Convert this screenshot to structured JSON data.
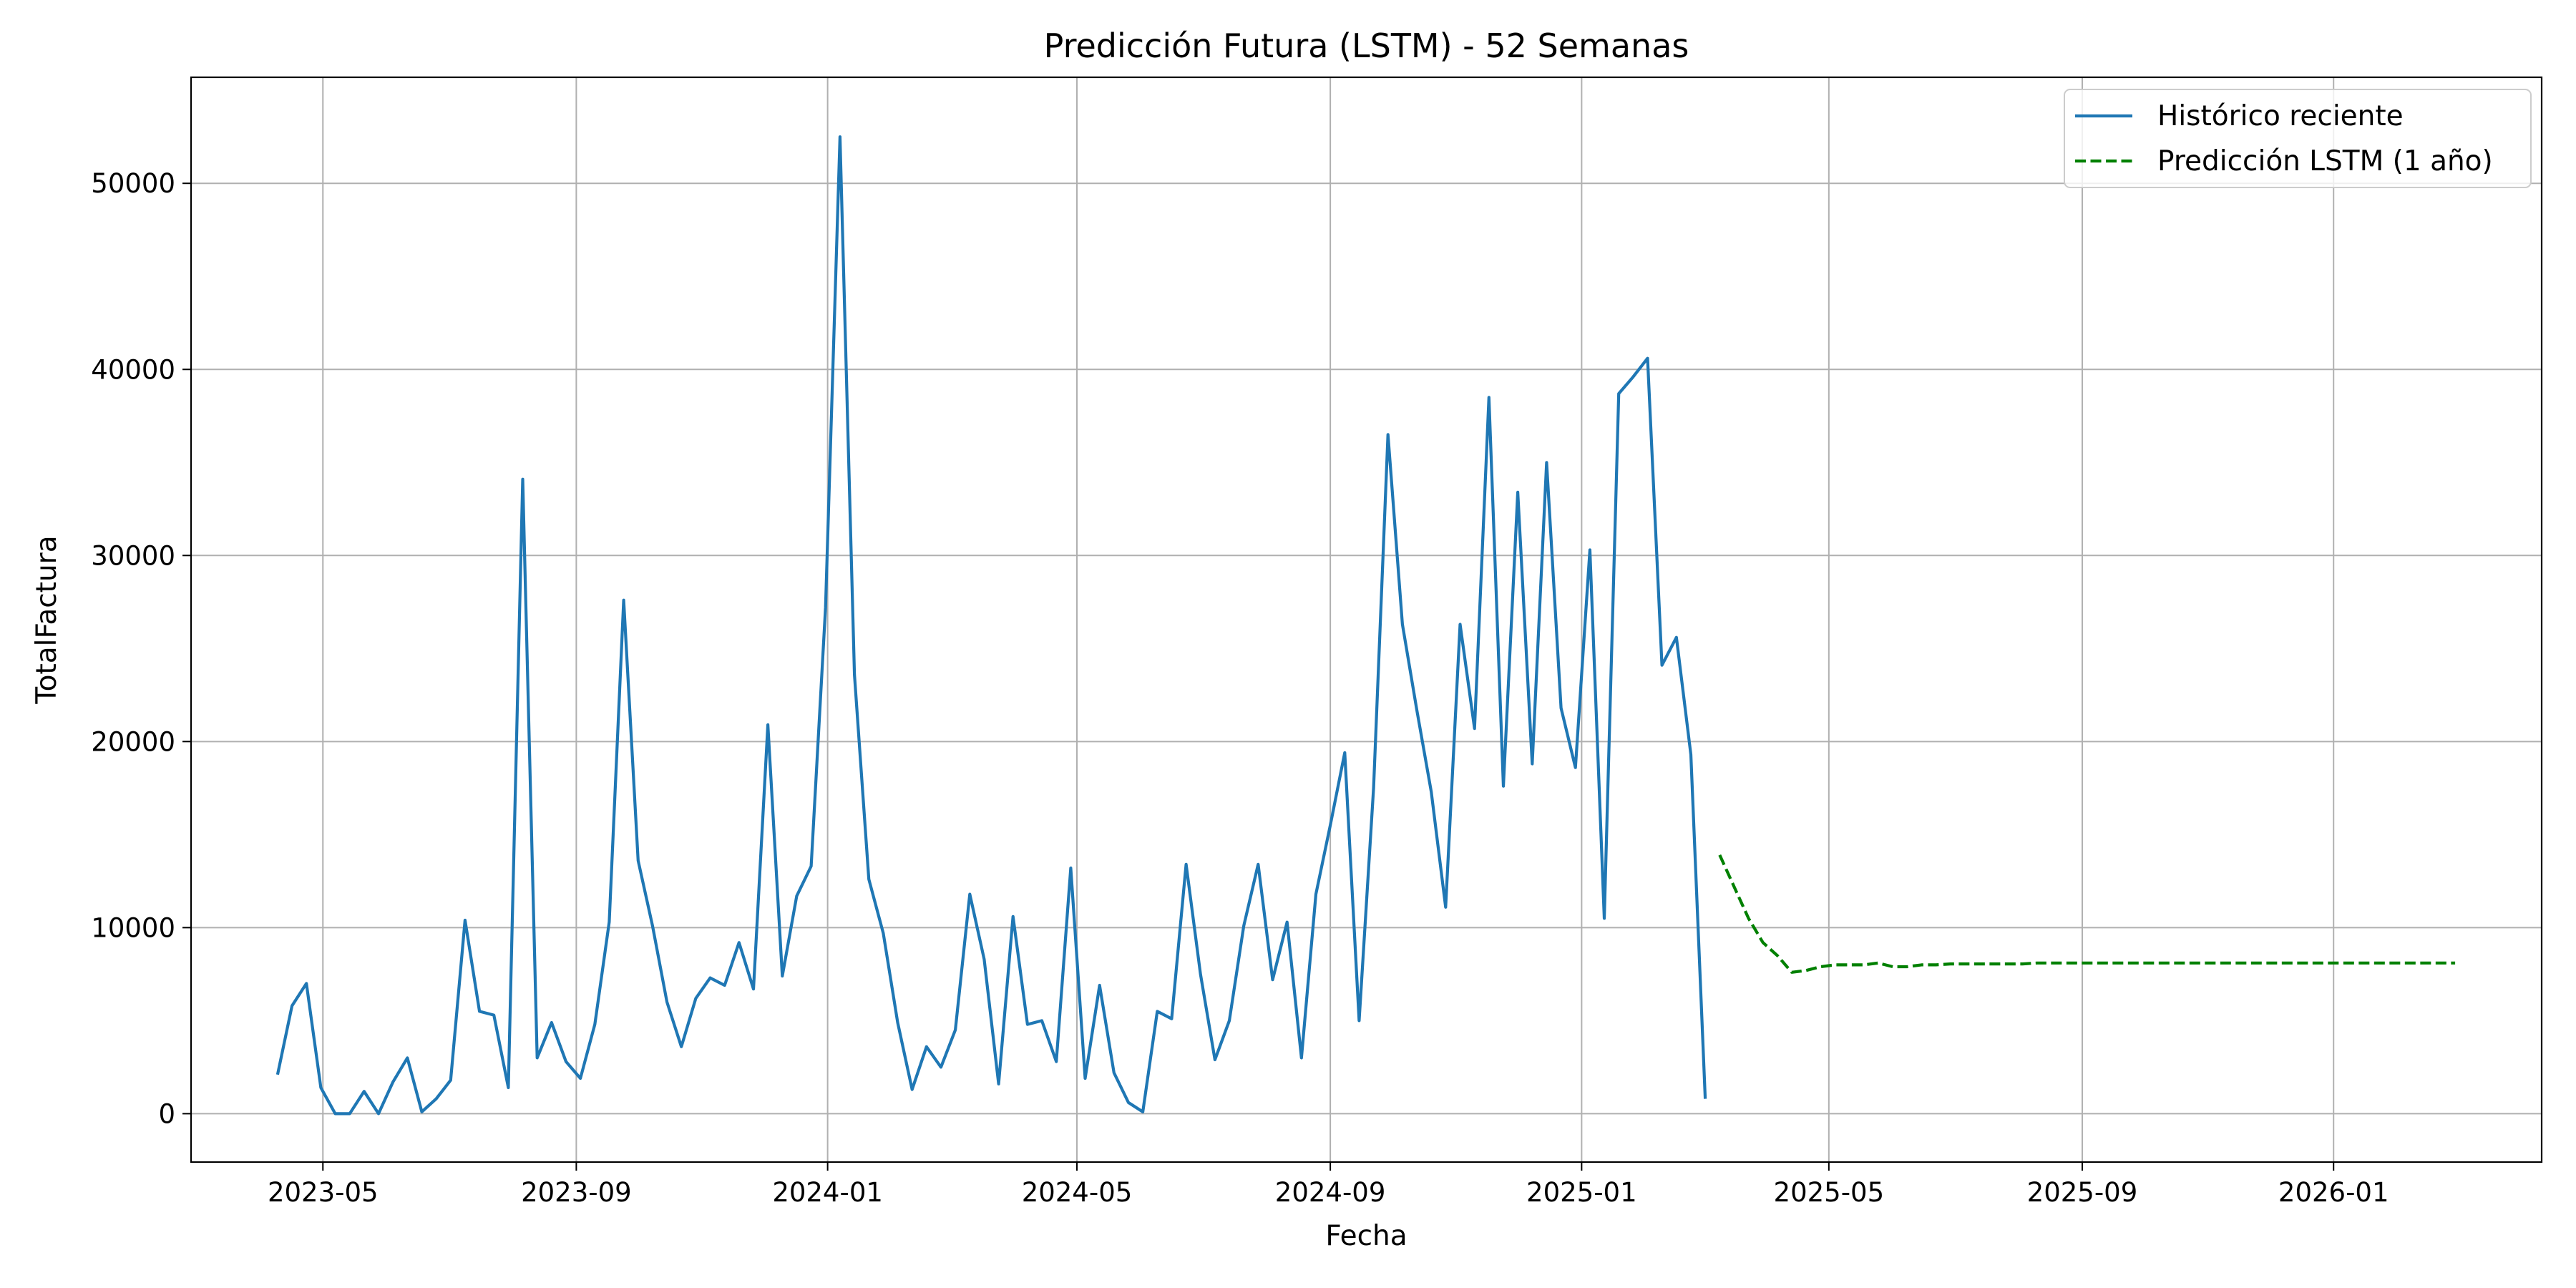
{
  "chart_data": {
    "type": "line",
    "title": "Predicción Futura (LSTM) - 52 Semanas",
    "xlabel": "Fecha",
    "ylabel": "TotalFactura",
    "x_range": [
      "2023-02-26",
      "2026-04-12"
    ],
    "ylim": [
      -2600,
      55700
    ],
    "grid": true,
    "legend_position": "top-right",
    "x_ticks": [
      "2023-05",
      "2023-09",
      "2024-01",
      "2024-05",
      "2024-09",
      "2025-01",
      "2025-05",
      "2025-09",
      "2026-01"
    ],
    "y_ticks": [
      0,
      10000,
      20000,
      30000,
      40000,
      50000
    ],
    "series": [
      {
        "name": "Histórico reciente",
        "color": "#1f77b4",
        "style": "solid",
        "x": [
          "2023-04-09",
          "2023-04-16",
          "2023-04-23",
          "2023-04-30",
          "2023-05-07",
          "2023-05-14",
          "2023-05-21",
          "2023-05-28",
          "2023-06-04",
          "2023-06-11",
          "2023-06-18",
          "2023-06-25",
          "2023-07-02",
          "2023-07-09",
          "2023-07-16",
          "2023-07-23",
          "2023-07-30",
          "2023-08-06",
          "2023-08-13",
          "2023-08-20",
          "2023-08-27",
          "2023-09-03",
          "2023-09-10",
          "2023-09-17",
          "2023-09-24",
          "2023-10-01",
          "2023-10-08",
          "2023-10-15",
          "2023-10-22",
          "2023-10-29",
          "2023-11-05",
          "2023-11-12",
          "2023-11-19",
          "2023-11-26",
          "2023-12-03",
          "2023-12-10",
          "2023-12-17",
          "2023-12-24",
          "2023-12-31",
          "2024-01-07",
          "2024-01-14",
          "2024-01-21",
          "2024-01-28",
          "2024-02-04",
          "2024-02-11",
          "2024-02-18",
          "2024-02-25",
          "2024-03-03",
          "2024-03-10",
          "2024-03-17",
          "2024-03-24",
          "2024-03-31",
          "2024-04-07",
          "2024-04-14",
          "2024-04-21",
          "2024-04-28",
          "2024-05-05",
          "2024-05-12",
          "2024-05-19",
          "2024-05-26",
          "2024-06-02",
          "2024-06-09",
          "2024-06-16",
          "2024-06-23",
          "2024-06-30",
          "2024-07-07",
          "2024-07-14",
          "2024-07-21",
          "2024-07-28",
          "2024-08-04",
          "2024-08-11",
          "2024-08-18",
          "2024-08-25",
          "2024-09-01",
          "2024-09-08",
          "2024-09-15",
          "2024-09-22",
          "2024-09-29",
          "2024-10-06",
          "2024-10-13",
          "2024-10-20",
          "2024-10-27",
          "2024-11-03",
          "2024-11-10",
          "2024-11-17",
          "2024-11-24",
          "2024-12-01",
          "2024-12-08",
          "2024-12-15",
          "2024-12-22",
          "2024-12-29",
          "2025-01-05",
          "2025-01-12",
          "2025-01-19",
          "2025-01-26",
          "2025-02-02",
          "2025-02-09",
          "2025-02-16",
          "2025-02-23",
          "2025-03-02"
        ],
        "y": [
          2100,
          5800,
          7000,
          1400,
          0,
          0,
          1200,
          0,
          1700,
          3000,
          100,
          800,
          1800,
          10400,
          5500,
          5300,
          1400,
          34100,
          3000,
          4900,
          2800,
          1900,
          4800,
          10300,
          27600,
          13600,
          10100,
          6000,
          3600,
          6200,
          7300,
          6900,
          9200,
          6700,
          20900,
          7400,
          11700,
          13300,
          27200,
          52500,
          23600,
          12600,
          9700,
          4900,
          1300,
          3600,
          2500,
          4500,
          11800,
          8300,
          1600,
          10600,
          4800,
          5000,
          2800,
          13200,
          1900,
          6900,
          2200,
          600,
          100,
          5500,
          5100,
          13400,
          7500,
          2900,
          5000,
          10100,
          13400,
          7200,
          10300,
          3000,
          11800,
          15500,
          19400,
          5000,
          17500,
          36500,
          26300,
          21700,
          17300,
          11100,
          26300,
          20700,
          38500,
          17600,
          33400,
          18800,
          35000,
          21800,
          18600,
          30300,
          10500,
          38700,
          39600,
          40600,
          24100,
          25600,
          19300,
          800
        ]
      },
      {
        "name": "Predicción LSTM (1 año)",
        "color": "#008000",
        "style": "dashed",
        "x": [
          "2025-03-09",
          "2025-03-16",
          "2025-03-23",
          "2025-03-30",
          "2025-04-06",
          "2025-04-13",
          "2025-04-20",
          "2025-04-27",
          "2025-05-04",
          "2025-05-11",
          "2025-05-18",
          "2025-05-25",
          "2025-06-01",
          "2025-06-08",
          "2025-06-15",
          "2025-06-22",
          "2025-06-29",
          "2025-07-06",
          "2025-07-13",
          "2025-07-20",
          "2025-07-27",
          "2025-08-03",
          "2025-08-10",
          "2025-08-17",
          "2025-08-24",
          "2025-08-31",
          "2025-09-07",
          "2025-09-14",
          "2025-09-21",
          "2025-09-28",
          "2025-10-05",
          "2025-10-12",
          "2025-10-19",
          "2025-10-26",
          "2025-11-02",
          "2025-11-09",
          "2025-11-16",
          "2025-11-23",
          "2025-11-30",
          "2025-12-07",
          "2025-12-14",
          "2025-12-21",
          "2025-12-28",
          "2026-01-04",
          "2026-01-11",
          "2026-01-18",
          "2026-01-25",
          "2026-02-01",
          "2026-02-08",
          "2026-02-15",
          "2026-02-22",
          "2026-03-01"
        ],
        "y": [
          13900,
          12200,
          10500,
          9200,
          8500,
          7600,
          7700,
          7900,
          8000,
          8000,
          8000,
          8100,
          7900,
          7900,
          8000,
          8000,
          8050,
          8050,
          8050,
          8050,
          8050,
          8050,
          8100,
          8100,
          8100,
          8100,
          8100,
          8100,
          8100,
          8100,
          8100,
          8100,
          8100,
          8100,
          8100,
          8100,
          8100,
          8100,
          8100,
          8100,
          8100,
          8100,
          8100,
          8100,
          8100,
          8100,
          8100,
          8100,
          8100,
          8100,
          8100,
          8100
        ]
      }
    ]
  }
}
